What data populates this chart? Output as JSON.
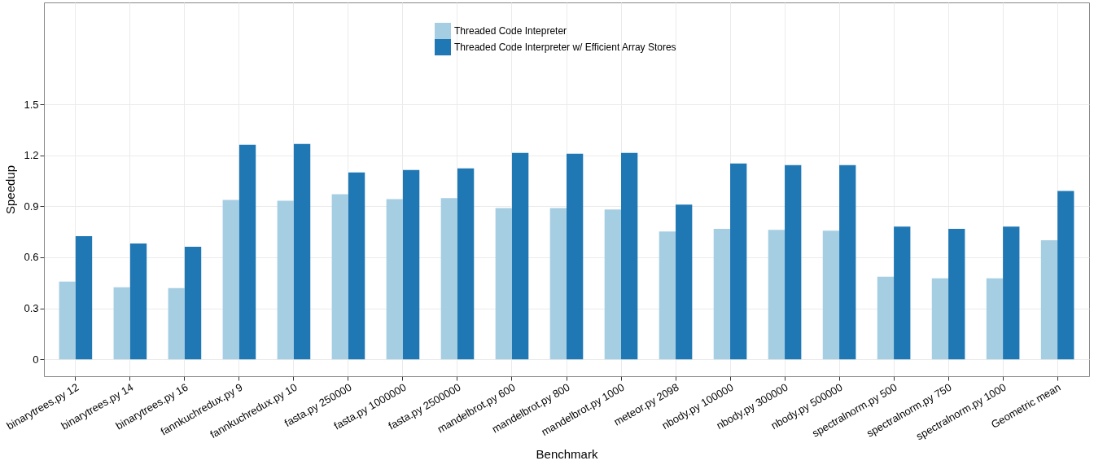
{
  "chart_data": {
    "type": "bar",
    "xlabel": "Benchmark",
    "ylabel": "Speedup",
    "categories": [
      "binarytrees.py 12",
      "binarytrees.py 14",
      "binarytrees.py 16",
      "fannkuchredux.py 9",
      "fannkuchredux.py 10",
      "fasta.py 250000",
      "fasta.py 1000000",
      "fasta.py 2500000",
      "mandelbrot.py 600",
      "mandelbrot.py 800",
      "mandelbrot.py 1000",
      "meteor.py 2098",
      "nbody.py 100000",
      "nbody.py 300000",
      "nbody.py 500000",
      "spectralnorm.py 500",
      "spectralnorm.py 750",
      "spectralnorm.py 1000",
      "Geometric mean"
    ],
    "series": [
      {
        "name": "Threaded Code Intepreter",
        "color": "#a6cee3",
        "values": [
          0.457,
          0.424,
          0.419,
          0.938,
          0.933,
          0.971,
          0.943,
          0.948,
          0.89,
          0.89,
          0.881,
          0.752,
          0.767,
          0.762,
          0.757,
          0.486,
          0.476,
          0.476,
          0.7
        ]
      },
      {
        "name": "Threaded Code Interpreter w/ Efficient Array Stores",
        "color": "#1f78b4",
        "values": [
          0.724,
          0.681,
          0.662,
          1.262,
          1.267,
          1.1,
          1.114,
          1.124,
          1.214,
          1.21,
          1.214,
          0.91,
          1.152,
          1.143,
          1.143,
          0.781,
          0.767,
          0.781,
          0.99
        ]
      }
    ],
    "ylim": [
      -0.1,
      2.1
    ],
    "yticks": [
      0,
      0.3,
      0.6,
      0.9,
      1.2,
      1.5
    ],
    "grid": true,
    "legend": "top"
  }
}
